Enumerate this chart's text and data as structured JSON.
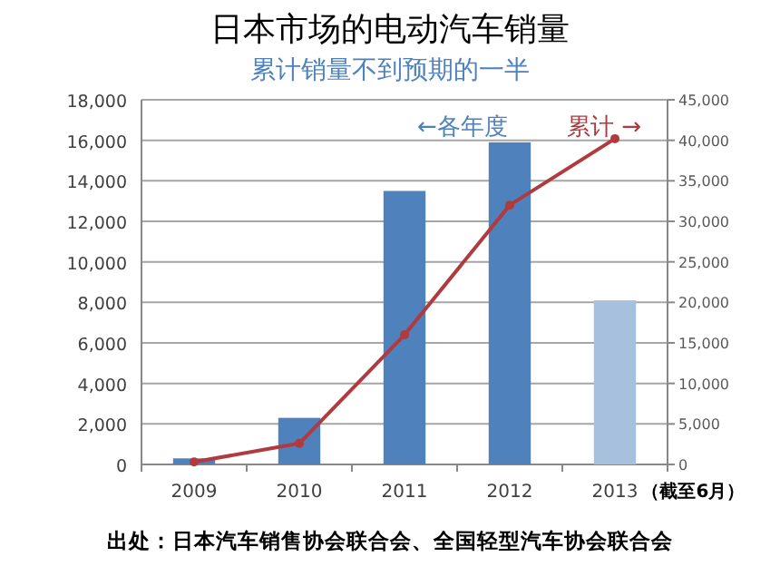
{
  "chart_data": {
    "type": "bar",
    "title": "日本市场的电动汽车销量",
    "subtitle": "累计销量不到预期的一半",
    "categories": [
      "2009",
      "2010",
      "2011",
      "2012",
      "2013"
    ],
    "series": [
      {
        "name": "←各年度",
        "color": "#4f81bd",
        "colors": [
          "#4f81bd",
          "#4f81bd",
          "#4f81bd",
          "#4f81bd",
          "#a7c0de"
        ],
        "values": [
          300,
          2300,
          13500,
          15900,
          8100
        ]
      },
      {
        "type": "line",
        "name": "累计 →",
        "color": "#b03a3e",
        "axis": "y2",
        "marker": "circle",
        "values": [
          300,
          2600,
          16000,
          32000,
          40200
        ]
      }
    ],
    "ylim": [
      0,
      18000
    ],
    "yticks": [
      0,
      {
        "value": 2000,
        "label": "2,000"
      },
      {
        "value": 4000,
        "label": "4,000"
      },
      {
        "value": 6000,
        "label": "6,000"
      },
      {
        "value": 8000,
        "label": "8,000"
      },
      {
        "value": 10000,
        "label": "10,000"
      },
      {
        "value": 12000,
        "label": "12,000"
      },
      {
        "value": 14000,
        "label": "14,000"
      },
      {
        "value": 16000,
        "label": "16,000"
      },
      {
        "value": 18000,
        "label": "18,000"
      }
    ],
    "y2lim": [
      0,
      45000
    ],
    "y2ticks": [
      0,
      {
        "value": 5000,
        "label": "5,000"
      },
      {
        "value": 10000,
        "label": "10,000"
      },
      {
        "value": 15000,
        "label": "15,000"
      },
      {
        "value": 20000,
        "label": "20,000"
      },
      {
        "value": 25000,
        "label": "25,000"
      },
      {
        "value": 30000,
        "label": "30,000"
      },
      {
        "value": 35000,
        "label": "35,000"
      },
      {
        "value": 40000,
        "label": "40,000"
      },
      {
        "value": 45000,
        "label": "45,000"
      }
    ],
    "grid": "y",
    "annotations": [
      "（截至6月）",
      "出处：日本汽车销售协会联合会、全国轻型汽车协会联合会"
    ]
  }
}
